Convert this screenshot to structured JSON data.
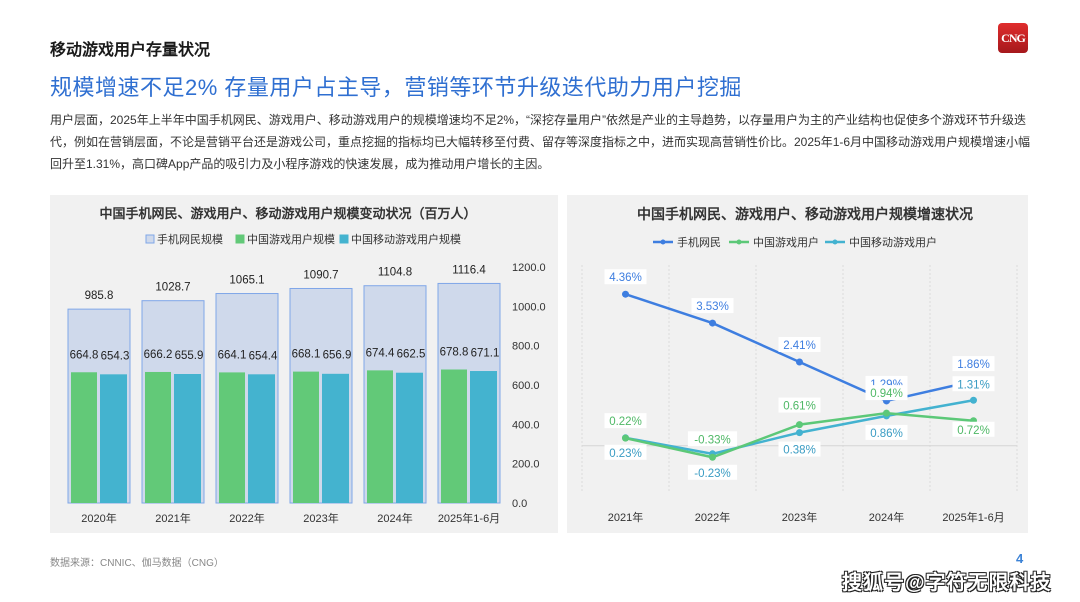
{
  "page": {
    "section_title": "移动游戏用户存量状况",
    "logo_text": "CNG",
    "headline": "规模增速不足2%  存量用户占主导，营销等环节升级迭代助力用户挖掘",
    "body": "用户层面，2025年上半年中国手机网民、游戏用户、移动游戏用户的规模增速均不足2%，“深挖存量用户”依然是产业的主导趋势，以存量用户为主的产业结构也促使多个游戏环节升级迭代，例如在营销层面，不论是营销平台还是游戏公司，重点挖掘的指标均已大幅转移至付费、留存等深度指标之中，进而实现高营销性价比。2025年1-6月中国移动游戏用户规模增速小幅回升至1.31%，高口碑App产品的吸引力及小程序游戏的快速发展，成为推动用户增长的主因。",
    "source": "数据来源：CNNIC、伽马数据（CNG）",
    "page_number": "4",
    "watermark": "搜狐号@字符无限科技"
  },
  "colors": {
    "headline": "#2f6fd1",
    "netizen_bar_fill": "#cfd9eb",
    "netizen_bar_border": "#7fa6e8",
    "game_users": "#62c978",
    "mobile_game_users": "#44b3cf",
    "netizen_line": "#3e7ee0",
    "game_line": "#5cc878",
    "mobile_line": "#43b2d0"
  },
  "chart_data": [
    {
      "type": "bar",
      "title": "中国手机网民、游戏用户、移动游戏用户规模变动状况（百万人）",
      "categories": [
        "2020年",
        "2021年",
        "2022年",
        "2023年",
        "2024年",
        "2025年1-6月"
      ],
      "series": [
        {
          "name": "手机网民规模",
          "values": [
            985.8,
            1028.7,
            1065.1,
            1090.7,
            1104.8,
            1116.4
          ]
        },
        {
          "name": "中国游戏用户规模",
          "values": [
            664.8,
            666.2,
            664.1,
            668.1,
            674.4,
            678.8
          ]
        },
        {
          "name": "中国移动游戏用户规模",
          "values": [
            654.3,
            655.9,
            654.4,
            656.9,
            662.5,
            671.1
          ]
        }
      ],
      "yaxis_ticks": [
        "0.0",
        "200.0",
        "400.0",
        "600.0",
        "800.0",
        "1000.0",
        "1200.0"
      ],
      "ylim": [
        0,
        1200
      ],
      "yaxis_side": "right",
      "legend": "top",
      "grid": false
    },
    {
      "type": "line",
      "title": "中国手机网民、游戏用户、移动游戏用户规模增速状况",
      "categories": [
        "2021年",
        "2022年",
        "2023年",
        "2024年",
        "2025年1-6月"
      ],
      "series": [
        {
          "name": "手机网民",
          "values": [
            4.36,
            3.53,
            2.41,
            1.29,
            1.86
          ],
          "labels": [
            "4.36%",
            "3.53%",
            "2.41%",
            "1.29%",
            "1.86%"
          ]
        },
        {
          "name": "中国游戏用户",
          "values": [
            0.22,
            -0.33,
            0.61,
            0.94,
            0.72
          ],
          "labels": [
            "0.22%",
            "-0.33%",
            "0.61%",
            "0.94%",
            "0.72%"
          ]
        },
        {
          "name": "中国移动游戏用户",
          "values": [
            0.23,
            -0.23,
            0.38,
            0.86,
            1.31
          ],
          "labels": [
            "0.23%",
            "-0.23%",
            "0.38%",
            "0.86%",
            "1.31%"
          ]
        }
      ],
      "ylim": [
        -1.3,
        5.2
      ],
      "legend": "top",
      "grid": "vertical-dotted"
    }
  ]
}
